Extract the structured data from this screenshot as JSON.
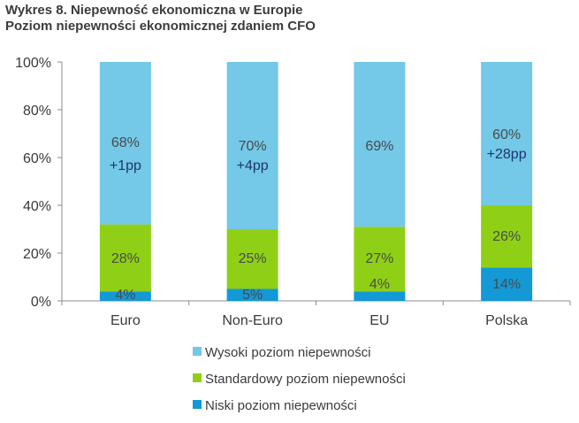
{
  "title_line1": "Wykres 8. Niepewność ekonomiczna w Europie",
  "title_line2": "Poziom niepewności ekonomicznej zdaniem CFO",
  "chart_data": {
    "type": "bar",
    "stacked": true,
    "title": "Poziom niepewności ekonomicznej zdaniem CFO",
    "categories": [
      "Euro",
      "Non-Euro",
      "EU",
      "Polska"
    ],
    "series": [
      {
        "name": "Niski poziom niepewności",
        "color": "#1399d6",
        "values": [
          4,
          5,
          4,
          14
        ],
        "labels": [
          "4%",
          "5%",
          "4%",
          "14%"
        ]
      },
      {
        "name": "Standardowy poziom niepewności",
        "color": "#8fd016",
        "values": [
          28,
          25,
          27,
          26
        ],
        "labels": [
          "28%",
          "25%",
          "27%",
          "26%"
        ]
      },
      {
        "name": "Wysoki poziom niepewności",
        "color": "#74c8e8",
        "values": [
          68,
          70,
          69,
          60
        ],
        "labels": [
          "68%",
          "70%",
          "69%",
          "60%"
        ]
      }
    ],
    "annotations": [
      "+1pp",
      "+4pp",
      "",
      "+28pp"
    ],
    "yticks": [
      "0%",
      "20%",
      "40%",
      "60%",
      "80%",
      "100%"
    ],
    "ylim": [
      0,
      100
    ],
    "legend_order": [
      2,
      1,
      0
    ],
    "legend_position": "bottom-center",
    "grid": false
  }
}
